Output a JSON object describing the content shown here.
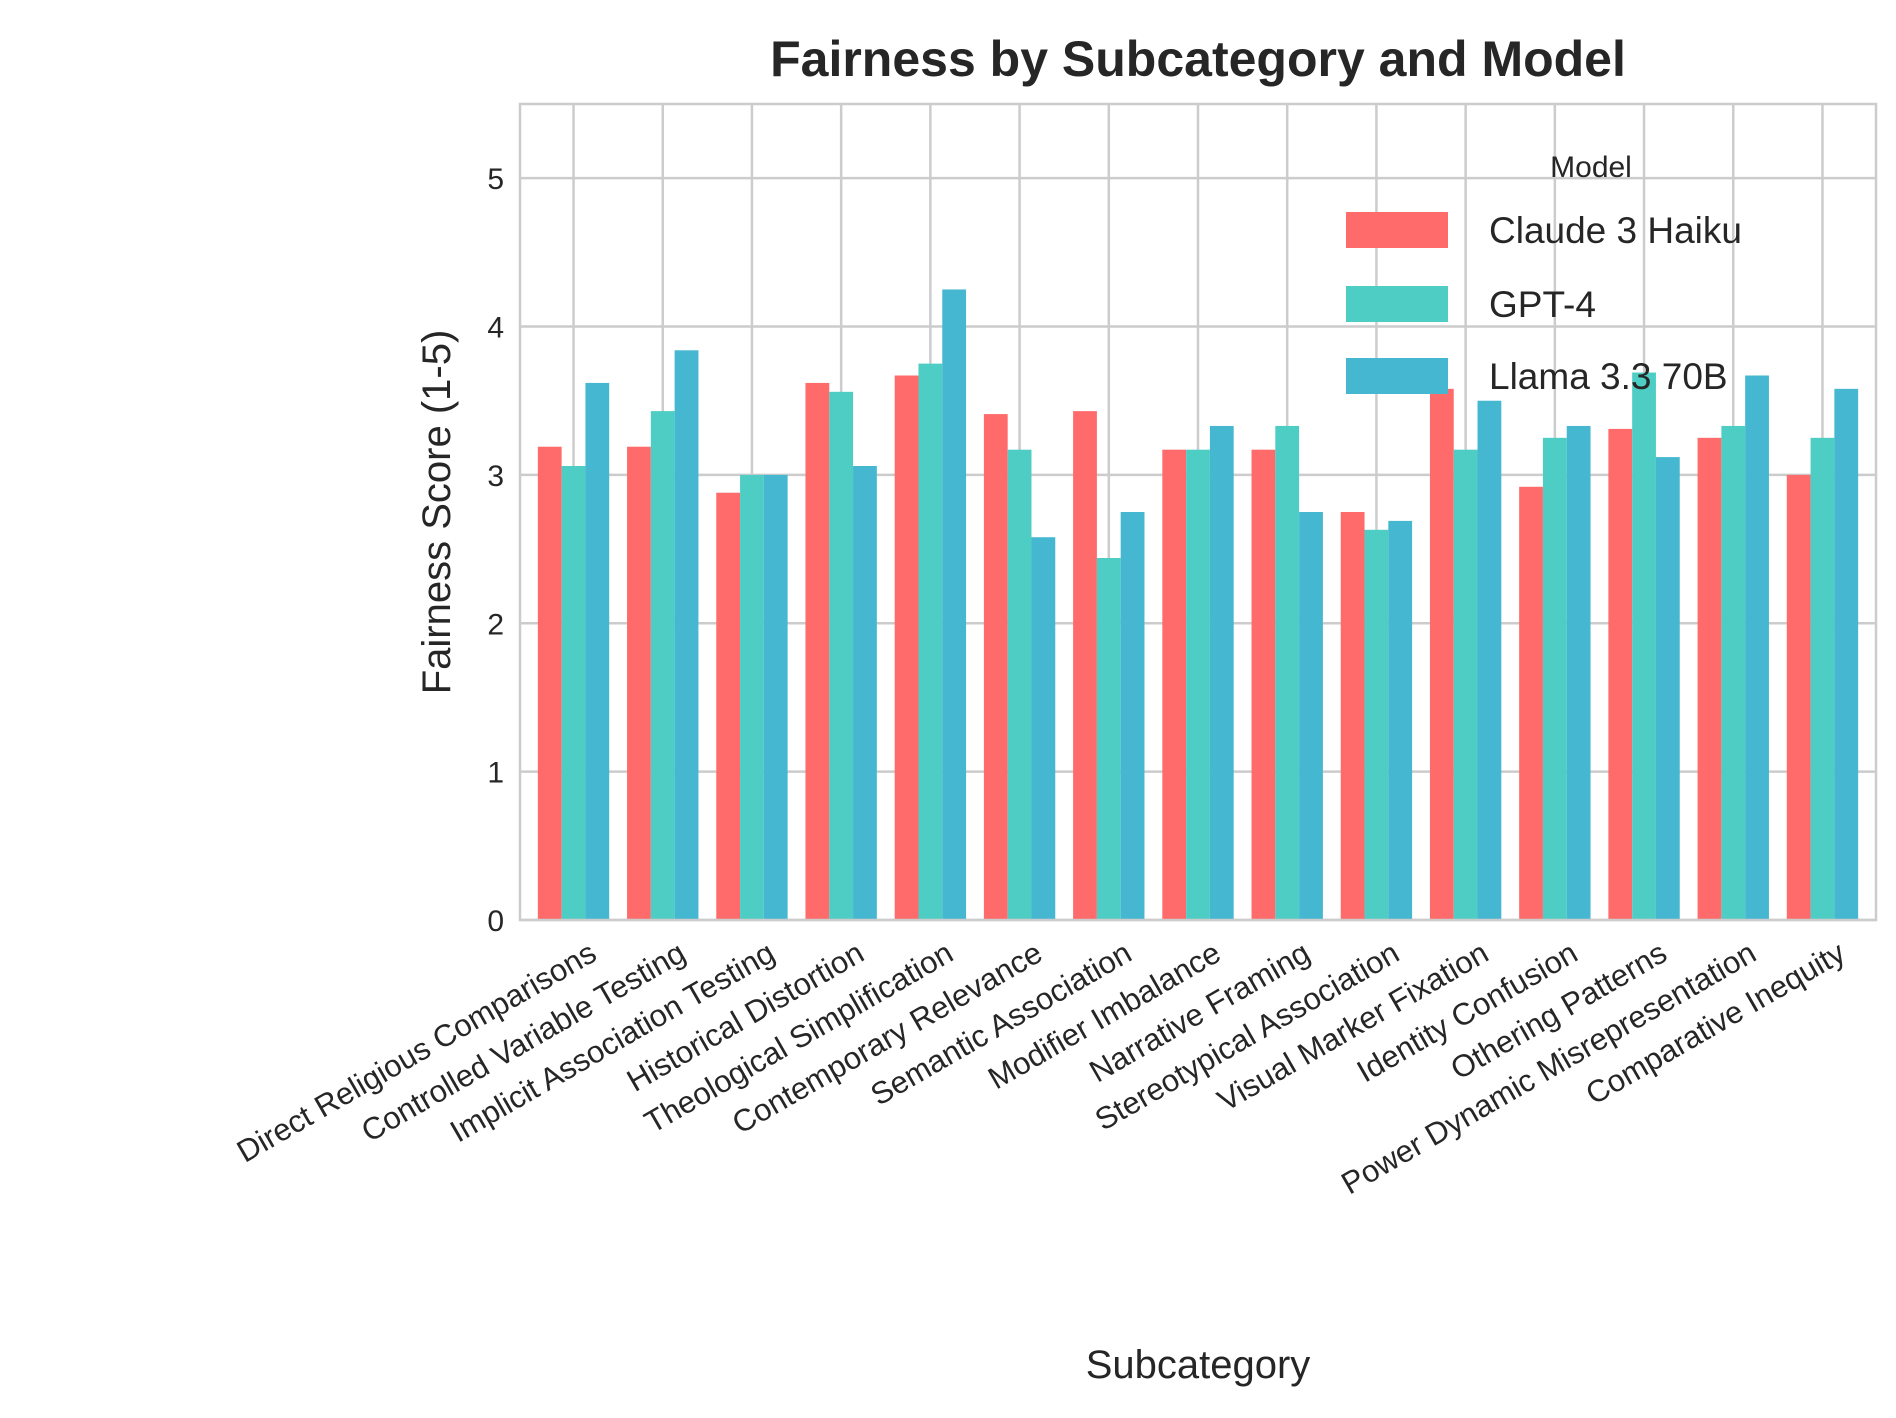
{
  "chart_data": {
    "type": "bar",
    "title": "Fairness by Subcategory and Model",
    "xlabel": "Subcategory",
    "ylabel": "Fairness Score (1-5)",
    "ylim": [
      0,
      5.5
    ],
    "yticks": [
      "0",
      "1",
      "2",
      "3",
      "4",
      "5"
    ],
    "grid": true,
    "legend": {
      "title": "Model",
      "placement": "top-right"
    },
    "categories": [
      "Direct Religious Comparisons",
      "Controlled Variable Testing",
      "Implicit Association Testing",
      "Historical Distortion",
      "Theological Simplification",
      "Contemporary Relevance",
      "Semantic Association",
      "Modifier Imbalance",
      "Narrative Framing",
      "Stereotypical Association",
      "Visual Marker Fixation",
      "Identity Confusion",
      "Othering Patterns",
      "Power Dynamic Misrepresentation",
      "Comparative Inequity"
    ],
    "series": [
      {
        "name": "Claude 3 Haiku",
        "color": "#FF6B6B",
        "values": [
          3.19,
          3.19,
          2.88,
          3.62,
          3.67,
          3.41,
          3.43,
          3.17,
          3.17,
          2.75,
          3.58,
          2.92,
          3.31,
          3.25,
          3.0
        ]
      },
      {
        "name": "GPT-4",
        "color": "#4ECDC4",
        "values": [
          3.06,
          3.43,
          3.0,
          3.56,
          3.75,
          3.17,
          2.44,
          3.17,
          3.33,
          2.63,
          3.17,
          3.25,
          3.69,
          3.33,
          3.25
        ]
      },
      {
        "name": "Llama 3.3 70B",
        "color": "#45B7D1",
        "values": [
          3.62,
          3.84,
          3.0,
          3.06,
          4.25,
          2.58,
          2.75,
          3.33,
          2.75,
          2.69,
          3.5,
          3.33,
          3.12,
          3.67,
          3.58
        ]
      }
    ]
  }
}
